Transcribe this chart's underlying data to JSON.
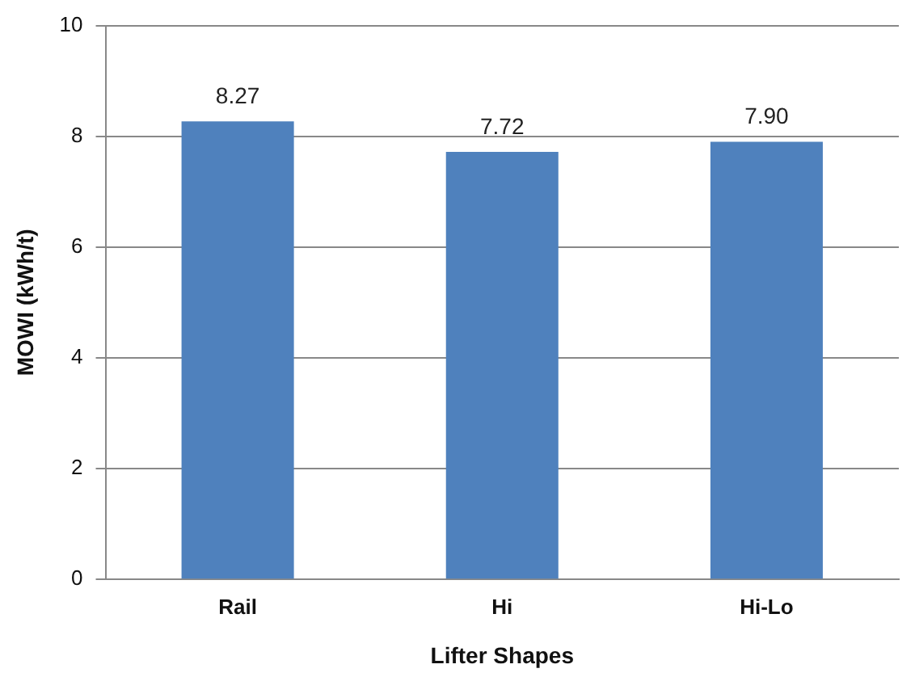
{
  "chart_data": {
    "type": "bar",
    "xlabel": "Lifter Shapes",
    "ylabel": "MOWI (kWh/t)",
    "categories": [
      "Rail",
      "Hi",
      "Hi-Lo"
    ],
    "values": [
      8.27,
      7.72,
      7.9
    ],
    "value_labels": [
      "8.27",
      "7.72",
      "7.90"
    ],
    "color": "#4f81bd",
    "ylim": [
      0,
      10
    ],
    "yticks": [
      0,
      2,
      4,
      6,
      8,
      10
    ],
    "grid": "y",
    "legend": false
  }
}
